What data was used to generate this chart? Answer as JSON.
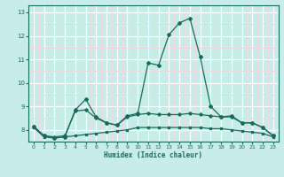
{
  "xlabel": "Humidex (Indice chaleur)",
  "xlim": [
    -0.5,
    23.5
  ],
  "ylim": [
    7.5,
    13.3
  ],
  "yticks": [
    8,
    9,
    10,
    11,
    12,
    13
  ],
  "xticks": [
    0,
    1,
    2,
    3,
    4,
    5,
    6,
    7,
    8,
    9,
    10,
    11,
    12,
    13,
    14,
    15,
    16,
    17,
    18,
    19,
    20,
    21,
    22,
    23
  ],
  "bg_color": "#c8ecea",
  "line_color": "#1a6b5a",
  "grid_major_color": "#ffffff",
  "grid_minor_color": "#f5d8d8",
  "series": {
    "line_peak": [
      8.15,
      7.75,
      7.65,
      7.7,
      8.85,
      9.3,
      8.55,
      8.3,
      8.2,
      8.6,
      8.7,
      10.85,
      10.75,
      12.05,
      12.55,
      12.75,
      11.1,
      9.0,
      8.55,
      8.6,
      8.3,
      8.3,
      8.1,
      7.75
    ],
    "line_mid1": [
      8.15,
      7.75,
      7.7,
      7.75,
      8.8,
      8.85,
      8.5,
      8.3,
      8.2,
      8.55,
      8.65,
      8.7,
      8.65,
      8.65,
      8.65,
      8.7,
      8.65,
      8.6,
      8.55,
      8.55,
      8.3,
      8.3,
      8.1,
      7.75
    ],
    "line_flat": [
      8.1,
      7.7,
      7.65,
      7.7,
      7.75,
      7.8,
      7.85,
      7.9,
      7.95,
      8.0,
      8.1,
      8.1,
      8.1,
      8.1,
      8.1,
      8.1,
      8.1,
      8.05,
      8.05,
      8.0,
      7.95,
      7.9,
      7.85,
      7.7
    ]
  }
}
